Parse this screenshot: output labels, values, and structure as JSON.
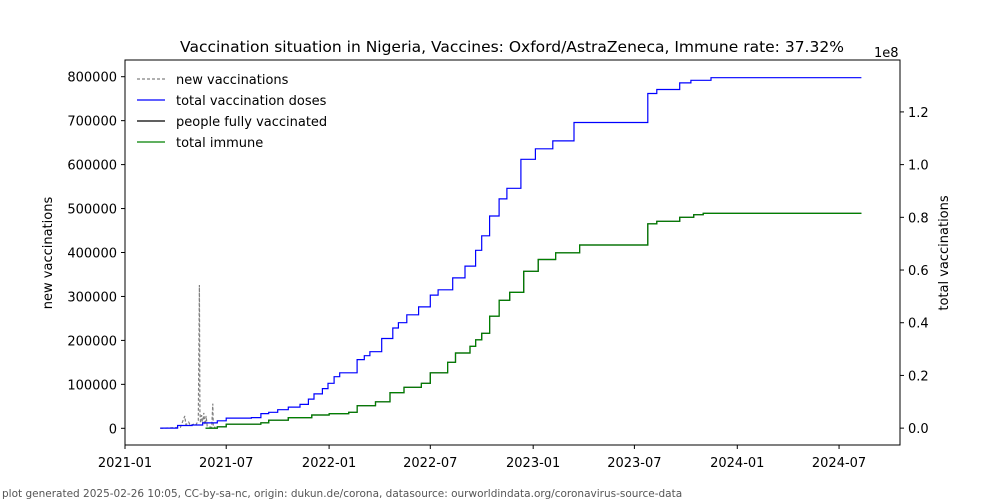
{
  "chart_data": {
    "type": "line",
    "title": "Vaccination situation in Nigeria, Vaccines: Oxford/AstraZeneca, Immune rate: 37.32%",
    "xlabel": "",
    "ylabel": "new vaccinations",
    "y2label": "total vaccinations",
    "y2_offset_label": "1e8",
    "x_ticks": [
      "2021-01",
      "2021-07",
      "2022-01",
      "2022-07",
      "2023-01",
      "2023-07",
      "2024-01",
      "2024-07"
    ],
    "y_ticks": [
      "0",
      "100000",
      "200000",
      "300000",
      "400000",
      "500000",
      "600000",
      "700000",
      "800000"
    ],
    "y2_ticks": [
      "0.0",
      "0.2",
      "0.4",
      "0.6",
      "0.8",
      "1.0",
      "1.2"
    ],
    "xlim": [
      "2021-01-01",
      "2024-10-18"
    ],
    "ylim": [
      -38000,
      838000
    ],
    "y2lim": [
      -0.064,
      1.397
    ],
    "grid": false,
    "legend_position": "top-left",
    "legend": [
      "new vaccinations",
      "total vaccination doses",
      "people fully vaccinated",
      "total immune"
    ],
    "footer": "plot generated 2025-02-26 10:05, CC-by-sa-nc, origin: dukun.de/corona, datasource: ourworldindata.org/coronavirus-source-data",
    "colors": {
      "new_vaccinations": "#808080",
      "total_vaccination_doses": "#0000ff",
      "people_fully_vaccinated": "#000000",
      "total_immune": "#008000"
    },
    "series": [
      {
        "name": "new vaccinations",
        "axis": "left",
        "style": "dashed",
        "points": [
          [
            "2021-03-05",
            0
          ],
          [
            "2021-04-10",
            2000
          ],
          [
            "2021-04-18",
            28000
          ],
          [
            "2021-04-20",
            8000
          ],
          [
            "2021-04-25",
            14000
          ],
          [
            "2021-04-28",
            6000
          ],
          [
            "2021-05-05",
            10000
          ],
          [
            "2021-05-08",
            8000
          ],
          [
            "2021-05-12",
            18000
          ],
          [
            "2021-05-14",
            326000
          ],
          [
            "2021-05-15",
            40000
          ],
          [
            "2021-05-16",
            12000
          ],
          [
            "2021-05-18",
            30000
          ],
          [
            "2021-05-20",
            10000
          ],
          [
            "2021-05-22",
            35000
          ],
          [
            "2021-05-24",
            8000
          ],
          [
            "2021-05-26",
            28000
          ],
          [
            "2021-05-28",
            5000
          ],
          [
            "2021-06-05",
            2000
          ],
          [
            "2021-06-07",
            56000
          ],
          [
            "2021-06-08",
            3000
          ],
          [
            "2021-06-12",
            2000
          ]
        ]
      },
      {
        "name": "total vaccination doses",
        "axis": "right",
        "style": "step",
        "points": [
          [
            "2021-03-05",
            0.0
          ],
          [
            "2021-03-25",
            0.0
          ],
          [
            "2021-04-05",
            0.01
          ],
          [
            "2021-05-01",
            0.012
          ],
          [
            "2021-05-20",
            0.02
          ],
          [
            "2021-06-15",
            0.028
          ],
          [
            "2021-07-01",
            0.038
          ],
          [
            "2021-08-15",
            0.04
          ],
          [
            "2021-09-01",
            0.055
          ],
          [
            "2021-09-15",
            0.06
          ],
          [
            "2021-10-01",
            0.07
          ],
          [
            "2021-10-20",
            0.08
          ],
          [
            "2021-11-10",
            0.09
          ],
          [
            "2021-11-25",
            0.11
          ],
          [
            "2021-12-05",
            0.13
          ],
          [
            "2021-12-20",
            0.15
          ],
          [
            "2021-12-30",
            0.17
          ],
          [
            "2022-01-10",
            0.195
          ],
          [
            "2022-01-20",
            0.21
          ],
          [
            "2022-02-20",
            0.26
          ],
          [
            "2022-03-05",
            0.275
          ],
          [
            "2022-03-15",
            0.29
          ],
          [
            "2022-04-05",
            0.34
          ],
          [
            "2022-04-25",
            0.38
          ],
          [
            "2022-05-05",
            0.4
          ],
          [
            "2022-05-20",
            0.43
          ],
          [
            "2022-06-10",
            0.46
          ],
          [
            "2022-07-01",
            0.505
          ],
          [
            "2022-07-15",
            0.525
          ],
          [
            "2022-08-10",
            0.57
          ],
          [
            "2022-09-01",
            0.615
          ],
          [
            "2022-09-20",
            0.675
          ],
          [
            "2022-10-01",
            0.73
          ],
          [
            "2022-10-15",
            0.805
          ],
          [
            "2022-11-01",
            0.87
          ],
          [
            "2022-11-15",
            0.91
          ],
          [
            "2022-12-10",
            1.02
          ],
          [
            "2023-01-05",
            1.06
          ],
          [
            "2023-02-05",
            1.09
          ],
          [
            "2023-03-15",
            1.16
          ],
          [
            "2023-07-25",
            1.27
          ],
          [
            "2023-08-10",
            1.285
          ],
          [
            "2023-09-20",
            1.31
          ],
          [
            "2023-10-10",
            1.32
          ],
          [
            "2023-11-15",
            1.33
          ],
          [
            "2024-08-10",
            1.33
          ]
        ]
      },
      {
        "name": "people fully vaccinated",
        "axis": "right",
        "style": "step",
        "points": [
          [
            "2021-05-25",
            0.0
          ],
          [
            "2021-06-15",
            0.005
          ],
          [
            "2021-07-01",
            0.015
          ],
          [
            "2021-09-01",
            0.02
          ],
          [
            "2021-09-15",
            0.03
          ],
          [
            "2021-10-20",
            0.04
          ],
          [
            "2021-12-01",
            0.05
          ],
          [
            "2022-01-01",
            0.055
          ],
          [
            "2022-02-05",
            0.06
          ],
          [
            "2022-02-20",
            0.085
          ],
          [
            "2022-03-25",
            0.1
          ],
          [
            "2022-04-20",
            0.135
          ],
          [
            "2022-05-15",
            0.155
          ],
          [
            "2022-06-15",
            0.17
          ],
          [
            "2022-07-01",
            0.21
          ],
          [
            "2022-08-01",
            0.25
          ],
          [
            "2022-08-15",
            0.285
          ],
          [
            "2022-09-10",
            0.31
          ],
          [
            "2022-09-20",
            0.335
          ],
          [
            "2022-10-01",
            0.36
          ],
          [
            "2022-10-15",
            0.425
          ],
          [
            "2022-11-01",
            0.485
          ],
          [
            "2022-11-20",
            0.515
          ],
          [
            "2022-12-15",
            0.595
          ],
          [
            "2023-01-10",
            0.64
          ],
          [
            "2023-02-10",
            0.665
          ],
          [
            "2023-03-25",
            0.695
          ],
          [
            "2023-07-25",
            0.775
          ],
          [
            "2023-08-10",
            0.785
          ],
          [
            "2023-09-20",
            0.8
          ],
          [
            "2023-10-15",
            0.81
          ],
          [
            "2023-11-01",
            0.815
          ],
          [
            "2024-08-10",
            0.815
          ]
        ]
      },
      {
        "name": "total immune",
        "axis": "right",
        "style": "step",
        "points": [
          [
            "2021-05-25",
            0.0
          ],
          [
            "2021-06-15",
            0.005
          ],
          [
            "2021-07-01",
            0.015
          ],
          [
            "2021-09-01",
            0.02
          ],
          [
            "2021-09-15",
            0.03
          ],
          [
            "2021-10-20",
            0.04
          ],
          [
            "2021-12-01",
            0.05
          ],
          [
            "2022-01-01",
            0.055
          ],
          [
            "2022-02-05",
            0.06
          ],
          [
            "2022-02-20",
            0.085
          ],
          [
            "2022-03-25",
            0.1
          ],
          [
            "2022-04-20",
            0.135
          ],
          [
            "2022-05-15",
            0.155
          ],
          [
            "2022-06-15",
            0.17
          ],
          [
            "2022-07-01",
            0.21
          ],
          [
            "2022-08-01",
            0.25
          ],
          [
            "2022-08-15",
            0.285
          ],
          [
            "2022-09-10",
            0.31
          ],
          [
            "2022-09-20",
            0.335
          ],
          [
            "2022-10-01",
            0.36
          ],
          [
            "2022-10-15",
            0.425
          ],
          [
            "2022-11-01",
            0.485
          ],
          [
            "2022-11-20",
            0.515
          ],
          [
            "2022-12-15",
            0.595
          ],
          [
            "2023-01-10",
            0.64
          ],
          [
            "2023-02-10",
            0.665
          ],
          [
            "2023-03-25",
            0.695
          ],
          [
            "2023-07-25",
            0.775
          ],
          [
            "2023-08-10",
            0.785
          ],
          [
            "2023-09-20",
            0.8
          ],
          [
            "2023-10-15",
            0.81
          ],
          [
            "2023-11-01",
            0.815
          ],
          [
            "2024-08-10",
            0.815
          ]
        ]
      }
    ]
  }
}
